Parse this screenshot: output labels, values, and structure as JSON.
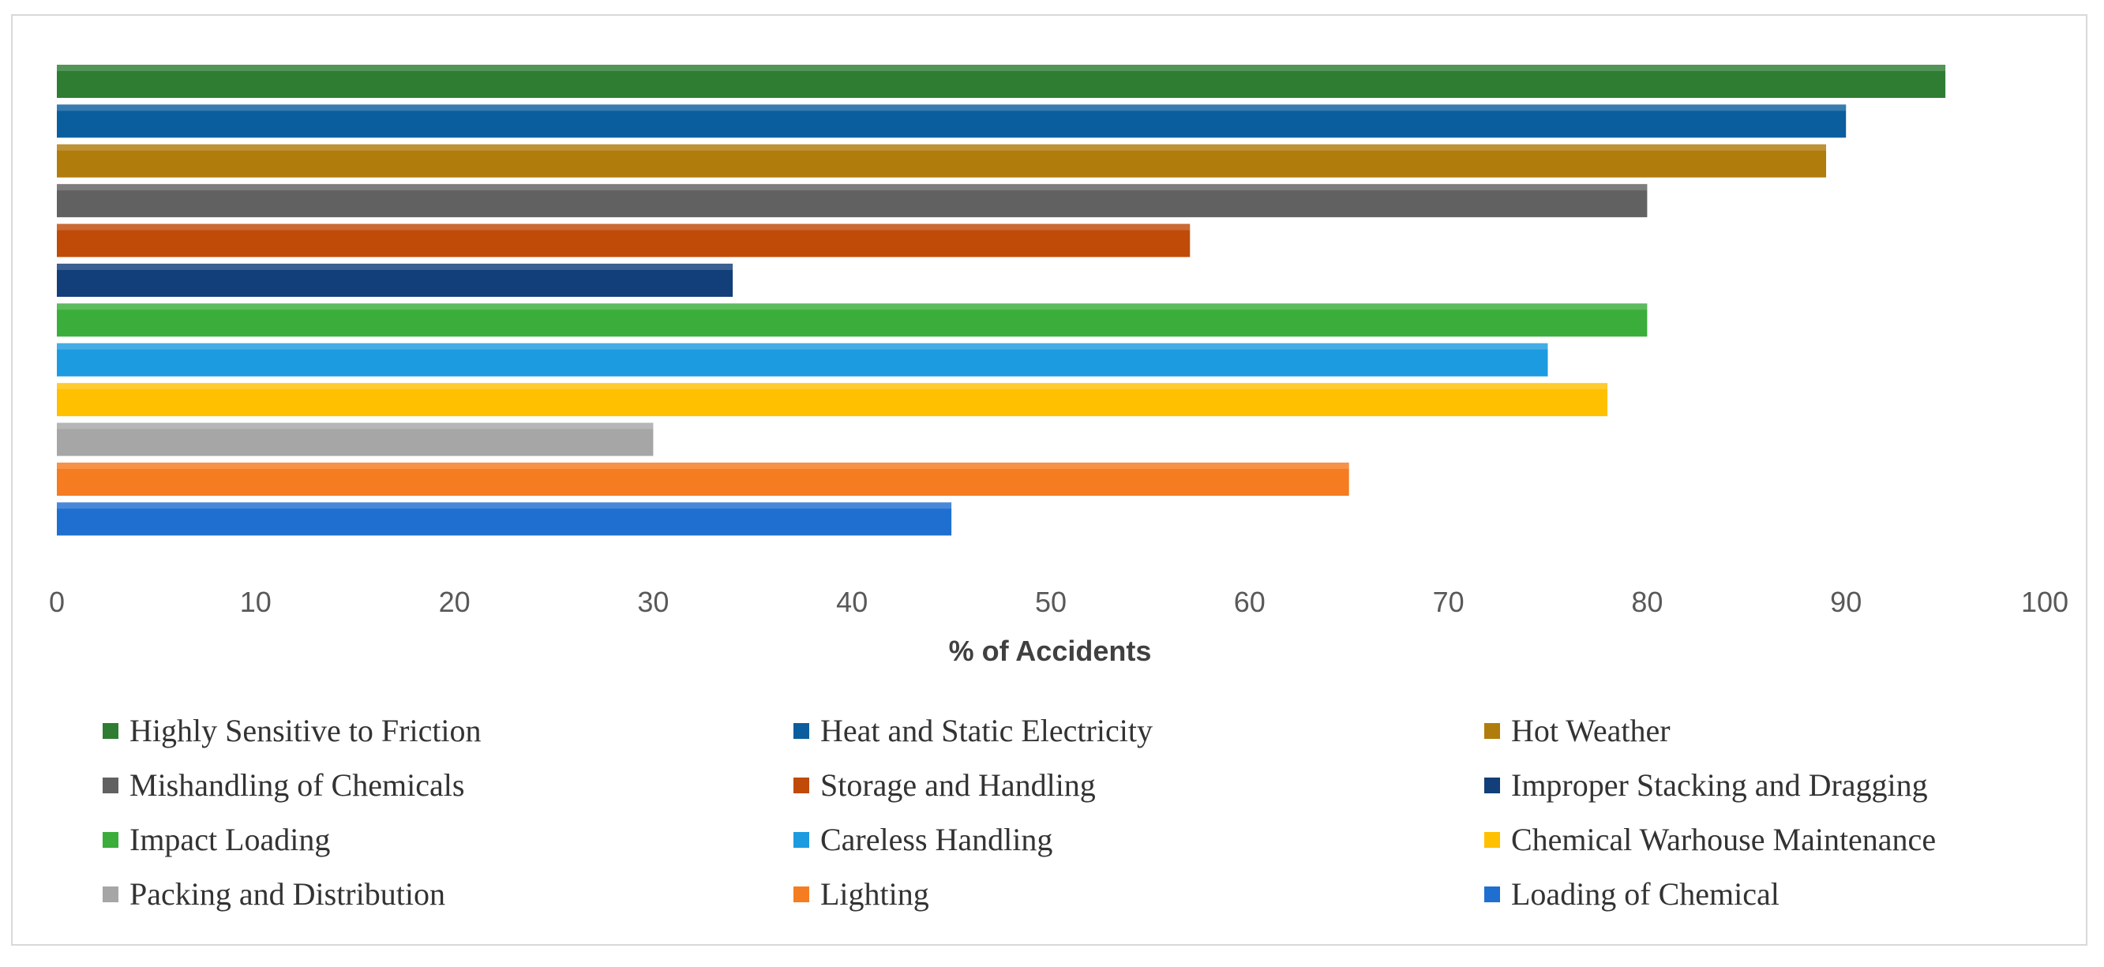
{
  "chart_data": {
    "type": "bar",
    "orientation": "horizontal",
    "title": "",
    "xlabel": "% of Accidents",
    "ylabel": "",
    "xlim": [
      0,
      100
    ],
    "xticks": [
      0,
      10,
      20,
      30,
      40,
      50,
      60,
      70,
      80,
      90,
      100
    ],
    "grid": false,
    "legend_position": "bottom",
    "series": [
      {
        "name": "Highly Sensitive to Friction",
        "value": 95,
        "color": "#2e7d32"
      },
      {
        "name": "Heat and Static Electricity",
        "value": 90,
        "color": "#0b5e9e"
      },
      {
        "name": "Hot Weather",
        "value": 89,
        "color": "#b07c0c"
      },
      {
        "name": "Mishandling of Chemicals",
        "value": 80,
        "color": "#616161"
      },
      {
        "name": "Storage and Handling",
        "value": 57,
        "color": "#c04a08"
      },
      {
        "name": "Improper Stacking and Dragging",
        "value": 34,
        "color": "#123e7a"
      },
      {
        "name": "Impact Loading",
        "value": 80,
        "color": "#3aad3a"
      },
      {
        "name": "Careless Handling",
        "value": 75,
        "color": "#1d9be0"
      },
      {
        "name": "Chemical Warhouse Maintenance",
        "value": 78,
        "color": "#ffc000"
      },
      {
        "name": "Packing and Distribution",
        "value": 30,
        "color": "#a6a6a6"
      },
      {
        "name": "Lighting",
        "value": 65,
        "color": "#f57c20"
      },
      {
        "name": "Loading of Chemical",
        "value": 45,
        "color": "#1f6fd0"
      }
    ]
  }
}
